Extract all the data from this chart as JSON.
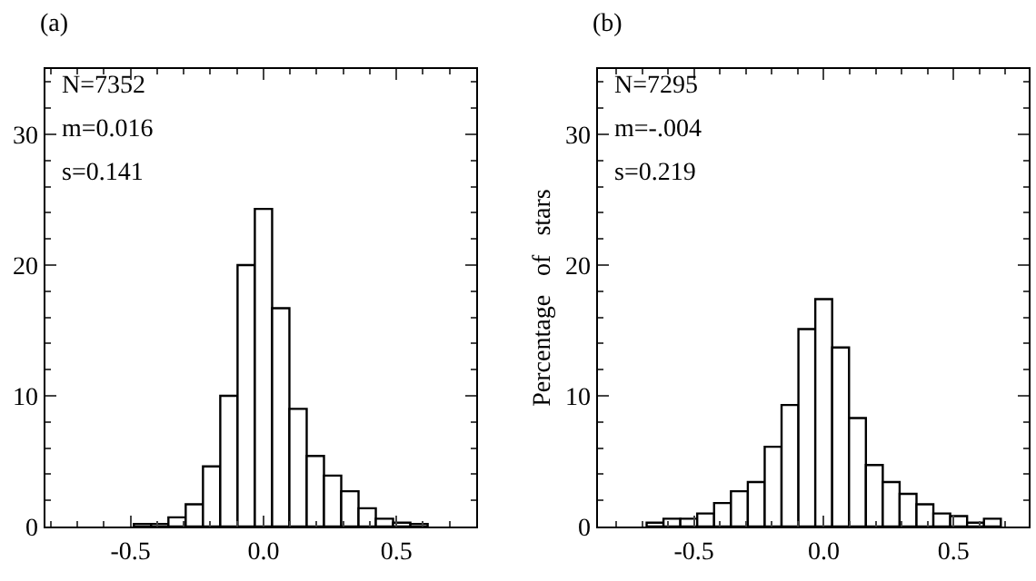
{
  "chart_data": [
    {
      "type": "histogram",
      "annotations": [
        "(a)",
        "N=7352",
        "m=0.016",
        "s=0.141"
      ],
      "bins": [
        -0.4875,
        -0.4225,
        -0.3575,
        -0.2925,
        -0.2275,
        -0.1625,
        -0.0975,
        -0.0325,
        0.0325,
        0.0975,
        0.1625,
        0.2275,
        0.2925,
        0.3575,
        0.4225,
        0.4875,
        0.5525,
        0.6175
      ],
      "values": [
        0.2,
        0.2,
        0.7,
        1.7,
        4.6,
        10.0,
        20.0,
        24.3,
        16.7,
        9.0,
        5.4,
        3.9,
        2.7,
        1.4,
        0.6,
        0.3,
        0.2
      ],
      "color": "#ffffff",
      "xlim": [
        -0.82,
        0.8
      ],
      "xticks": [
        {
          "value": -0.5,
          "label": "-0.5"
        },
        {
          "value": 0,
          "label": "0.0"
        },
        {
          "value": 0.5,
          "label": "0.5"
        }
      ],
      "ylim": [
        0,
        35
      ],
      "yticks": [
        0,
        10,
        20,
        30
      ],
      "grid": false
    },
    {
      "type": "histogram",
      "ylabel": "Percentage   of   stars",
      "annotations": [
        "(b)",
        "N=7295",
        "m=-.004",
        "s=0.219"
      ],
      "bins": [
        -0.6825,
        -0.6175,
        -0.5525,
        -0.4875,
        -0.4225,
        -0.3575,
        -0.2925,
        -0.2275,
        -0.1625,
        -0.0975,
        -0.0325,
        0.0325,
        0.0975,
        0.1625,
        0.2275,
        0.2925,
        0.3575,
        0.4225,
        0.4875,
        0.5525,
        0.6175,
        0.6825
      ],
      "values": [
        0.3,
        0.6,
        0.6,
        1.0,
        1.8,
        2.7,
        3.4,
        6.1,
        9.3,
        15.1,
        17.4,
        13.7,
        8.3,
        4.7,
        3.4,
        2.5,
        1.7,
        1.0,
        0.8,
        0.3,
        0.6
      ],
      "color": "#ffffff",
      "xlim": [
        -0.87,
        0.79
      ],
      "xticks": [
        {
          "value": -0.5,
          "label": "-0.5"
        },
        {
          "value": 0,
          "label": "0.0"
        },
        {
          "value": 0.5,
          "label": "0.5"
        }
      ],
      "ylim": [
        0,
        35
      ],
      "yticks": [
        0,
        10,
        20,
        30
      ],
      "grid": false
    }
  ]
}
